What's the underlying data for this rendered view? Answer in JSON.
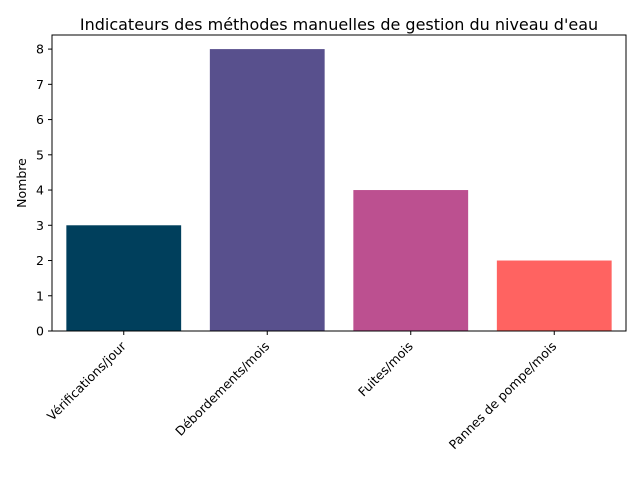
{
  "chart_data": {
    "type": "bar",
    "title": "Indicateurs des méthodes manuelles de gestion du niveau d'eau",
    "xlabel": "",
    "ylabel": "Nombre",
    "categories": [
      "Vérifications/jour",
      "Débordements/mois",
      "Fuites/mois",
      "Pannes de pompe/mois"
    ],
    "values": [
      3,
      8,
      4,
      2
    ],
    "colors": [
      "#003f5c",
      "#58508d",
      "#bc5090",
      "#ff6361"
    ],
    "ylim": [
      0,
      8.4
    ],
    "yticks": [
      "0",
      "1",
      "2",
      "3",
      "4",
      "5",
      "6",
      "7",
      "8"
    ],
    "grid": false,
    "legend": "none"
  }
}
